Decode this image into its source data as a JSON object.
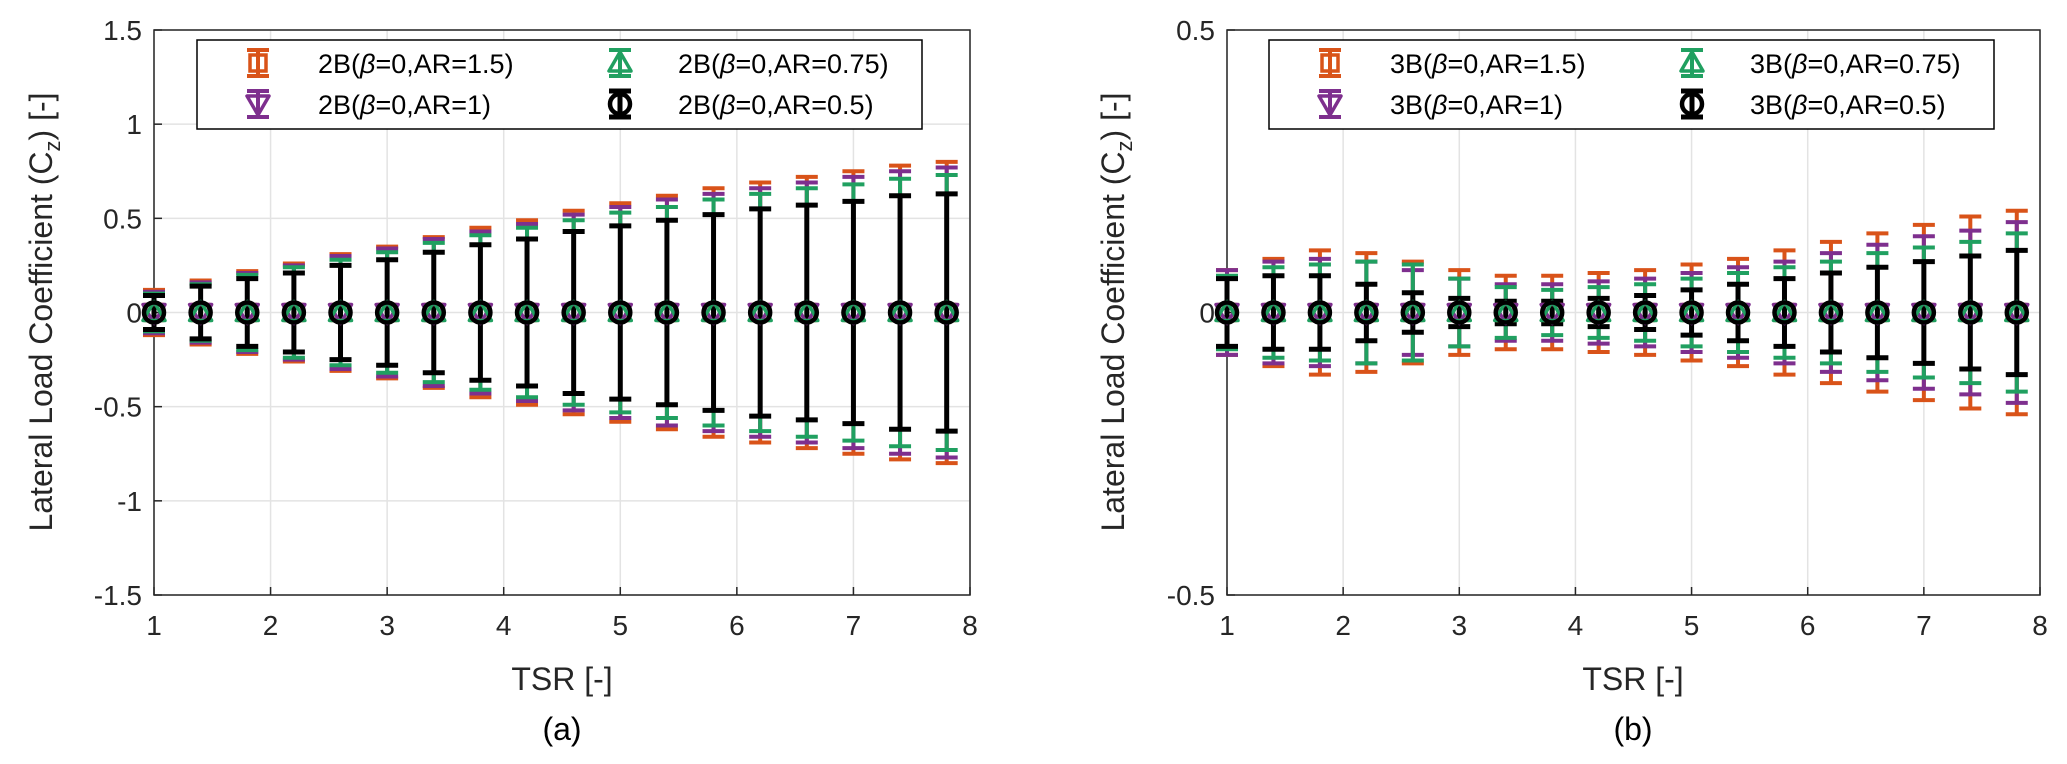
{
  "colors": {
    "ar15": "#D95319",
    "ar1": "#7E2F8E",
    "ar075": "#20A060",
    "ar05": "#000000",
    "grid": "#E3E3E3",
    "axis": "#262626"
  },
  "chart_data": [
    {
      "type": "scatter",
      "panel": "(a)",
      "title": "",
      "xlabel": "TSR [-]",
      "ylabel_main": "Lateral Load Coefficient (C",
      "ylabel_sub": "z",
      "ylabel_tail": ") [-]",
      "xlim": [
        1,
        8
      ],
      "ylim": [
        -1.5,
        1.5
      ],
      "xticks": [
        "1",
        "2",
        "3",
        "4",
        "5",
        "6",
        "7",
        "8"
      ],
      "yticks": [
        "-1.5",
        "-1",
        "-0.5",
        "0",
        "0.5",
        "1",
        "1.5"
      ],
      "ytick_values": [
        -1.5,
        -1,
        -0.5,
        0,
        0.5,
        1,
        1.5
      ],
      "grid": true,
      "legend_position": "top",
      "x": [
        1.0,
        1.4,
        1.8,
        2.2,
        2.6,
        3.0,
        3.4,
        3.8,
        4.2,
        4.6,
        5.0,
        5.4,
        5.8,
        6.2,
        6.6,
        7.0,
        7.4,
        7.8
      ],
      "series": [
        {
          "name": "2B(β=0,AR=1.5)",
          "prefix": "2B(",
          "param": "=0,AR=1.5)",
          "marker": "square",
          "color_key": "ar15",
          "values": [
            0,
            0,
            0,
            0,
            0,
            0,
            0,
            0,
            0,
            0,
            0,
            0,
            0,
            0,
            0,
            0,
            0,
            0
          ],
          "errors": [
            0.12,
            0.17,
            0.22,
            0.26,
            0.31,
            0.35,
            0.4,
            0.45,
            0.49,
            0.54,
            0.58,
            0.62,
            0.66,
            0.69,
            0.72,
            0.75,
            0.78,
            0.8
          ]
        },
        {
          "name": "2B(β=0,AR=1)",
          "prefix": "2B(",
          "param": "=0,AR=1)",
          "marker": "triangle-down",
          "color_key": "ar1",
          "values": [
            0,
            0,
            0,
            0,
            0,
            0,
            0,
            0,
            0,
            0,
            0,
            0,
            0,
            0,
            0,
            0,
            0,
            0
          ],
          "errors": [
            0.11,
            0.16,
            0.21,
            0.25,
            0.3,
            0.34,
            0.39,
            0.43,
            0.47,
            0.52,
            0.56,
            0.6,
            0.63,
            0.66,
            0.69,
            0.72,
            0.75,
            0.77
          ]
        },
        {
          "name": "2B(β=0,AR=0.75)",
          "prefix": "2B(",
          "param": "=0,AR=0.75)",
          "marker": "triangle-up",
          "color_key": "ar075",
          "values": [
            0,
            0,
            0,
            0,
            0,
            0,
            0,
            0,
            0,
            0,
            0,
            0,
            0,
            0,
            0,
            0,
            0,
            0
          ],
          "errors": [
            0.1,
            0.15,
            0.2,
            0.24,
            0.28,
            0.32,
            0.37,
            0.41,
            0.45,
            0.49,
            0.53,
            0.56,
            0.6,
            0.63,
            0.66,
            0.68,
            0.71,
            0.73
          ]
        },
        {
          "name": "2B(β=0,AR=0.5)",
          "prefix": "2B(",
          "param": "=0,AR=0.5)",
          "marker": "circle",
          "color_key": "ar05",
          "values": [
            0,
            0,
            0,
            0,
            0,
            0,
            0,
            0,
            0,
            0,
            0,
            0,
            0,
            0,
            0,
            0,
            0,
            0
          ],
          "errors": [
            0.09,
            0.14,
            0.18,
            0.21,
            0.25,
            0.28,
            0.32,
            0.36,
            0.39,
            0.43,
            0.46,
            0.49,
            0.52,
            0.55,
            0.57,
            0.59,
            0.62,
            0.63
          ]
        }
      ]
    },
    {
      "type": "scatter",
      "panel": "(b)",
      "title": "",
      "xlabel": "TSR [-]",
      "ylabel_main": "Lateral Load Coefficient (C",
      "ylabel_sub": "z",
      "ylabel_tail": ") [-]",
      "xlim": [
        1,
        8
      ],
      "ylim": [
        -0.5,
        0.5
      ],
      "xticks": [
        "1",
        "2",
        "3",
        "4",
        "5",
        "6",
        "7",
        "8"
      ],
      "yticks": [
        "-0.5",
        "0",
        "0.5"
      ],
      "ytick_values": [
        -0.5,
        0,
        0.5
      ],
      "grid": true,
      "legend_position": "top",
      "x": [
        1.0,
        1.4,
        1.8,
        2.2,
        2.6,
        3.0,
        3.4,
        3.8,
        4.2,
        4.6,
        5.0,
        5.4,
        5.8,
        6.2,
        6.6,
        7.0,
        7.4,
        7.8
      ],
      "series": [
        {
          "name": "3B(β=0,AR=1.5)",
          "prefix": "3B(",
          "param": "=0,AR=1.5)",
          "marker": "square",
          "color_key": "ar15",
          "values": [
            0,
            0,
            0,
            0,
            0,
            0,
            0,
            0,
            0,
            0,
            0,
            0,
            0,
            0,
            0,
            0,
            0,
            0
          ],
          "errors": [
            0.075,
            0.095,
            0.11,
            0.105,
            0.09,
            0.075,
            0.065,
            0.065,
            0.07,
            0.075,
            0.085,
            0.095,
            0.11,
            0.125,
            0.14,
            0.155,
            0.17,
            0.18
          ]
        },
        {
          "name": "3B(β=0,AR=1)",
          "prefix": "3B(",
          "param": "=0,AR=1)",
          "marker": "triangle-down",
          "color_key": "ar1",
          "values": [
            0,
            0,
            0,
            0,
            0,
            0,
            0,
            0,
            0,
            0,
            0,
            0,
            0,
            0,
            0,
            0,
            0,
            0
          ],
          "errors": [
            0.075,
            0.09,
            0.095,
            0.09,
            0.075,
            0.06,
            0.05,
            0.05,
            0.055,
            0.06,
            0.07,
            0.08,
            0.09,
            0.105,
            0.12,
            0.135,
            0.145,
            0.16
          ]
        },
        {
          "name": "3B(β=0,AR=0.75)",
          "prefix": "3B(",
          "param": "=0,AR=0.75)",
          "marker": "triangle-up",
          "color_key": "ar075",
          "values": [
            0,
            0,
            0,
            0,
            0,
            0,
            0,
            0,
            0,
            0,
            0,
            0,
            0,
            0,
            0,
            0,
            0,
            0
          ],
          "errors": [
            0.065,
            0.08,
            0.085,
            0.09,
            0.085,
            0.06,
            0.045,
            0.04,
            0.045,
            0.05,
            0.06,
            0.07,
            0.08,
            0.09,
            0.105,
            0.115,
            0.125,
            0.14
          ]
        },
        {
          "name": "3B(β=0,AR=0.5)",
          "prefix": "3B(",
          "param": "=0,AR=0.5)",
          "marker": "circle",
          "color_key": "ar05",
          "values": [
            0,
            0,
            0,
            0,
            0,
            0,
            0,
            0,
            0,
            0,
            0,
            0,
            0,
            0,
            0,
            0,
            0,
            0
          ],
          "errors": [
            0.06,
            0.065,
            0.065,
            0.05,
            0.035,
            0.025,
            0.02,
            0.02,
            0.025,
            0.03,
            0.04,
            0.05,
            0.06,
            0.07,
            0.08,
            0.09,
            0.1,
            0.11
          ]
        }
      ]
    }
  ]
}
